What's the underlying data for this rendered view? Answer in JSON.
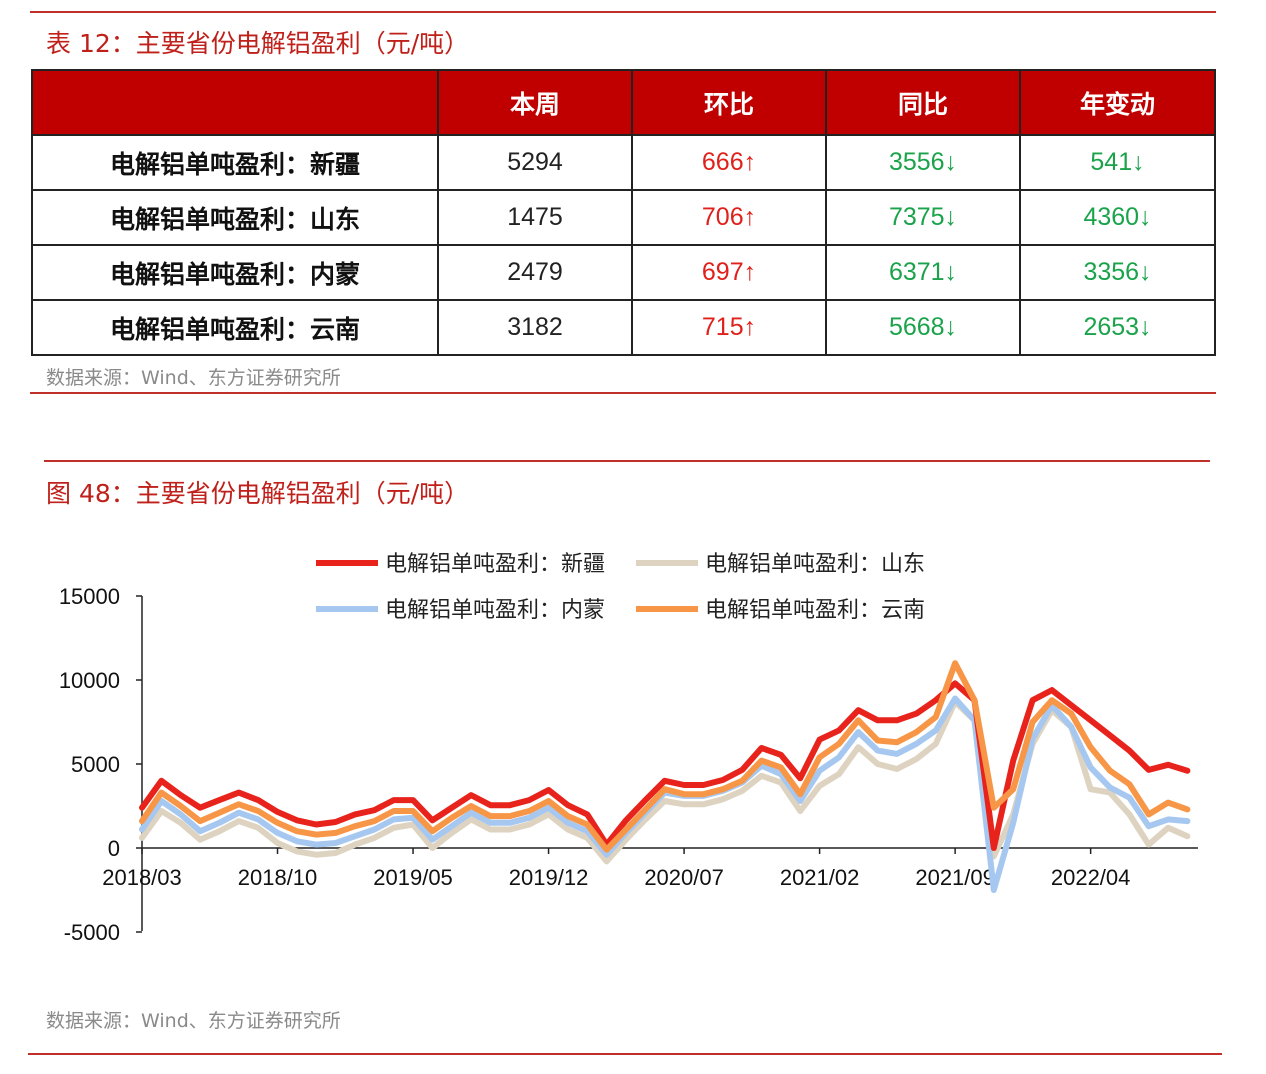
{
  "table_section": {
    "title": "表 12：主要省份电解铝盈利（元/吨）",
    "headers": [
      "",
      "本周",
      "环比",
      "同比",
      "年变动"
    ],
    "rows": [
      {
        "name": "电解铝单吨盈利：新疆",
        "week": "5294",
        "mom": "666↑",
        "yoy": "3556↓",
        "ytd": "541↓"
      },
      {
        "name": "电解铝单吨盈利：山东",
        "week": "1475",
        "mom": "706↑",
        "yoy": "7375↓",
        "ytd": "4360↓"
      },
      {
        "name": "电解铝单吨盈利：内蒙",
        "week": "2479",
        "mom": "697↑",
        "yoy": "6371↓",
        "ytd": "3356↓"
      },
      {
        "name": "电解铝单吨盈利：云南",
        "week": "3182",
        "mom": "715↑",
        "yoy": "5668↓",
        "ytd": "2653↓"
      }
    ],
    "source": "数据来源：Wind、东方证券研究所",
    "colors": {
      "header_bg": "#c00000",
      "up": "#e0201a",
      "down": "#1aa34a"
    }
  },
  "chart_section": {
    "title": "图 48：主要省份电解铝盈利（元/吨）",
    "source": "数据来源：Wind、东方证券研究所"
  },
  "chart_data": {
    "type": "line",
    "title": "",
    "xlabel": "",
    "ylabel": "",
    "ylim": [
      -5000,
      15000
    ],
    "yticks": [
      "15000",
      "10000",
      "5000",
      "0",
      "-5000"
    ],
    "xticks": [
      "2018/03",
      "2018/10",
      "2019/05",
      "2019/12",
      "2020/07",
      "2021/02",
      "2021/09",
      "2022/04"
    ],
    "x_start": "2018/03",
    "x_step": "monthly",
    "grid": false,
    "legend": "top",
    "series": [
      {
        "name": "电解铝单吨盈利：新疆",
        "color": "#e8231c",
        "values": [
          2400,
          4000,
          3150,
          2400,
          2850,
          3300,
          2850,
          2150,
          1650,
          1400,
          1550,
          2000,
          2250,
          2850,
          2850,
          1650,
          2400,
          3150,
          2550,
          2550,
          2850,
          3450,
          2550,
          2000,
          200,
          1650,
          2850,
          4000,
          3750,
          3750,
          4050,
          4650,
          5950,
          5550,
          4150,
          6450,
          7000,
          8200,
          7600,
          7600,
          8000,
          8800,
          9800,
          8800,
          0,
          5200,
          8800,
          9400,
          8500,
          7600,
          6700,
          5800,
          4650,
          4950,
          4600
        ]
      },
      {
        "name": "电解铝单吨盈利：山东",
        "color": "#ddd3c0",
        "values": [
          600,
          2200,
          1500,
          500,
          1000,
          1600,
          1200,
          300,
          -200,
          -400,
          -300,
          200,
          600,
          1200,
          1400,
          0,
          900,
          1700,
          1100,
          1100,
          1400,
          2000,
          1100,
          600,
          -800,
          500,
          1700,
          2800,
          2600,
          2600,
          2900,
          3400,
          4300,
          3900,
          2200,
          3700,
          4400,
          6000,
          5000,
          4700,
          5300,
          6200,
          8700,
          7600,
          -500,
          2000,
          6200,
          8200,
          7200,
          3500,
          3300,
          2000,
          200,
          1200,
          700
        ]
      },
      {
        "name": "电解铝单吨盈利：内蒙",
        "color": "#a6c8f0",
        "values": [
          1100,
          2800,
          2000,
          1000,
          1500,
          2100,
          1700,
          900,
          400,
          200,
          300,
          700,
          1100,
          1700,
          1800,
          500,
          1300,
          2100,
          1500,
          1500,
          1800,
          2400,
          1500,
          1000,
          -400,
          900,
          2100,
          3300,
          3100,
          3100,
          3400,
          3900,
          4900,
          4400,
          2800,
          4600,
          5400,
          6900,
          5800,
          5600,
          6200,
          7000,
          8900,
          7600,
          -2500,
          1500,
          6500,
          8500,
          7200,
          4800,
          3600,
          3000,
          1300,
          1700,
          1600
        ]
      },
      {
        "name": "电解铝单吨盈利：云南",
        "color": "#f79646",
        "values": [
          1600,
          3300,
          2500,
          1600,
          2100,
          2600,
          2200,
          1500,
          1000,
          800,
          900,
          1300,
          1600,
          2200,
          2200,
          1000,
          1800,
          2500,
          1900,
          1900,
          2200,
          2800,
          1900,
          1400,
          -100,
          1100,
          2300,
          3500,
          3200,
          3200,
          3500,
          4000,
          5200,
          4800,
          3200,
          5400,
          6200,
          7600,
          6400,
          6300,
          6900,
          7800,
          11000,
          8800,
          2400,
          3500,
          7500,
          8800,
          8000,
          6000,
          4600,
          3800,
          2000,
          2700,
          2300
        ]
      }
    ]
  }
}
